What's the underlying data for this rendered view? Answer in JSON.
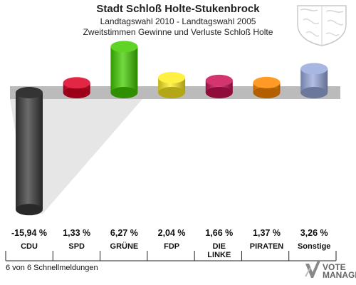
{
  "header": {
    "title": "Stadt Schloß Holte-Stukenbrock",
    "subtitle": "Landtagswahl 2010 - Landtagswahl 2005",
    "caption": "Zweitstimmen Gewinne und Verluste Schloß Holte"
  },
  "chart_data": {
    "type": "bar",
    "categories": [
      "CDU",
      "SPD",
      "GRÜNE",
      "FDP",
      "DIE LINKE",
      "PIRATEN",
      "Sonstige"
    ],
    "values": [
      -15.94,
      1.33,
      6.27,
      2.04,
      1.66,
      1.37,
      3.26
    ],
    "value_labels": [
      "-15,94 %",
      "1,33 %",
      "6,27 %",
      "2,04 %",
      "1,66 %",
      "1,37 %",
      "3,26 %"
    ],
    "colors": [
      "#3a3a3a",
      "#dd0022",
      "#44cc00",
      "#ffee22",
      "#cc1155",
      "#ff8800",
      "#99aadd"
    ],
    "legend": "none",
    "grid": false
  },
  "footer": {
    "note": "6 von 6 Schnellmeldungen",
    "logo_line1": "VOTE",
    "logo_line2": "MANAGER"
  },
  "icons": {
    "crest": "state-crest-icon",
    "logo": "vote-manager-logo-icon"
  }
}
